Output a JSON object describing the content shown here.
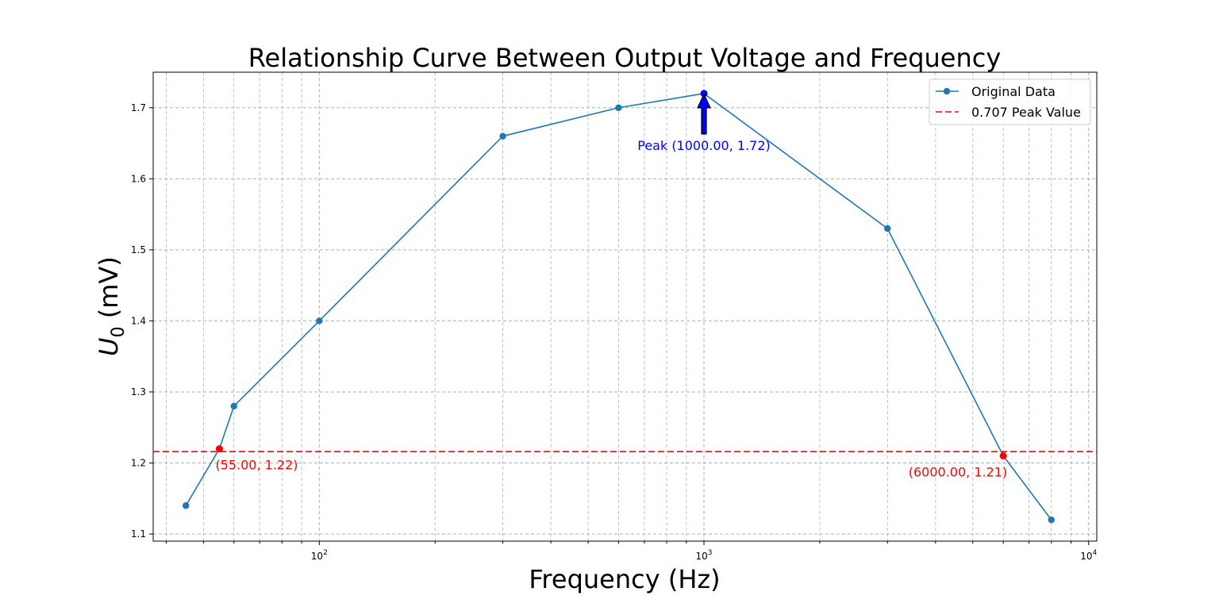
{
  "chart_data": {
    "type": "line",
    "title": "Relationship Curve Between Output Voltage and Frequency",
    "xlabel": "Frequency (Hz)",
    "ylabel": {
      "main": "U",
      "sub": "0",
      "unit": " (mV)"
    },
    "xscale": "log",
    "xlim": [
      37,
      10500
    ],
    "ylim": [
      1.09,
      1.75
    ],
    "grid": true,
    "legend_position": "top-right",
    "x_ticks": [
      {
        "value": 100,
        "base": "10",
        "exp": "2"
      },
      {
        "value": 1000,
        "base": "10",
        "exp": "3"
      },
      {
        "value": 10000,
        "base": "10",
        "exp": "4"
      }
    ],
    "y_ticks": [
      {
        "value": 1.1,
        "label": "1.1"
      },
      {
        "value": 1.2,
        "label": "1.2"
      },
      {
        "value": 1.3,
        "label": "1.3"
      },
      {
        "value": 1.4,
        "label": "1.4"
      },
      {
        "value": 1.5,
        "label": "1.5"
      },
      {
        "value": 1.6,
        "label": "1.6"
      },
      {
        "value": 1.7,
        "label": "1.7"
      }
    ],
    "series": [
      {
        "name": "Original Data",
        "color": "#1f77b4",
        "x": [
          45,
          55,
          60,
          100,
          300,
          600,
          1000,
          3000,
          6000,
          8000
        ],
        "y": [
          1.14,
          1.22,
          1.28,
          1.4,
          1.66,
          1.7,
          1.72,
          1.53,
          1.21,
          1.12
        ]
      }
    ],
    "reference_line": {
      "name": "0.707 Peak Value",
      "y": 1.216,
      "color": "#ff0000",
      "style": "dashed"
    },
    "peak": {
      "x": 1000,
      "y": 1.72,
      "label": "Peak (1000.00, 1.72)",
      "color": "#0000ff"
    },
    "cutoff_points": [
      {
        "x": 55,
        "y": 1.22,
        "label": "(55.00, 1.22)",
        "color": "#ff0000"
      },
      {
        "x": 6000,
        "y": 1.21,
        "label": "(6000.00, 1.21)",
        "color": "#ff0000"
      }
    ]
  }
}
